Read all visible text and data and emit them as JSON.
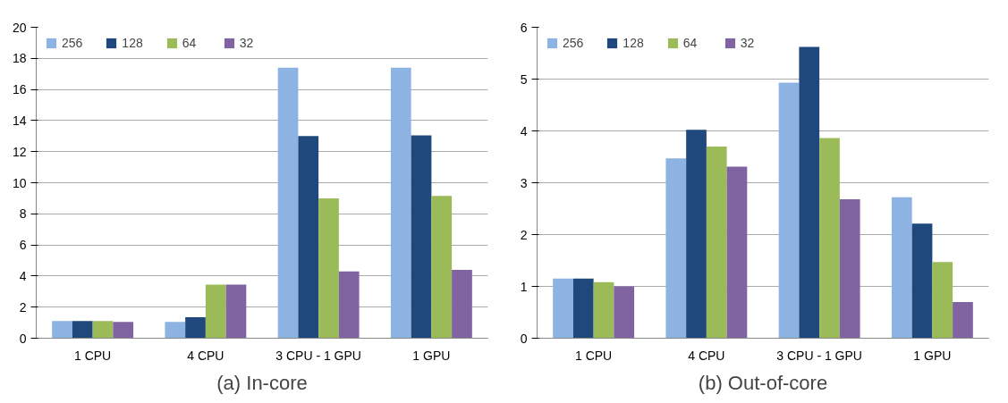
{
  "chart_data": [
    {
      "type": "bar",
      "title": "(a) In-core",
      "categories": [
        "1 CPU",
        "4 CPU",
        "3 CPU - 1 GPU",
        "1 GPU"
      ],
      "series": [
        {
          "name": "256",
          "color": "#8db3e2",
          "values": [
            1.1,
            1.05,
            17.4,
            17.4
          ]
        },
        {
          "name": "128",
          "color": "#1f497d",
          "values": [
            1.1,
            1.35,
            13.0,
            13.05
          ]
        },
        {
          "name": "64",
          "color": "#9bbb59",
          "values": [
            1.1,
            3.45,
            9.0,
            9.15
          ]
        },
        {
          "name": "32",
          "color": "#8064a2",
          "values": [
            1.05,
            3.45,
            4.3,
            4.4
          ]
        }
      ],
      "ylim": [
        0,
        20
      ],
      "yticks": [
        0,
        2,
        4,
        6,
        8,
        10,
        12,
        14,
        16,
        18,
        20
      ],
      "grid": "y",
      "legend": "top left"
    },
    {
      "type": "bar",
      "title": "(b) Out-of-core",
      "categories": [
        "1 CPU",
        "4 CPU",
        "3 CPU - 1 GPU",
        "1 GPU"
      ],
      "series": [
        {
          "name": "256",
          "color": "#8db3e2",
          "values": [
            1.15,
            3.47,
            4.93,
            2.72
          ]
        },
        {
          "name": "128",
          "color": "#1f497d",
          "values": [
            1.15,
            4.02,
            5.62,
            2.21
          ]
        },
        {
          "name": "64",
          "color": "#9bbb59",
          "values": [
            1.08,
            3.7,
            3.86,
            1.47
          ]
        },
        {
          "name": "32",
          "color": "#8064a2",
          "values": [
            1.0,
            3.31,
            2.68,
            0.7
          ]
        }
      ],
      "ylim": [
        0,
        6
      ],
      "yticks": [
        0,
        1,
        2,
        3,
        4,
        5,
        6
      ],
      "grid": "y",
      "legend": "top left"
    }
  ]
}
